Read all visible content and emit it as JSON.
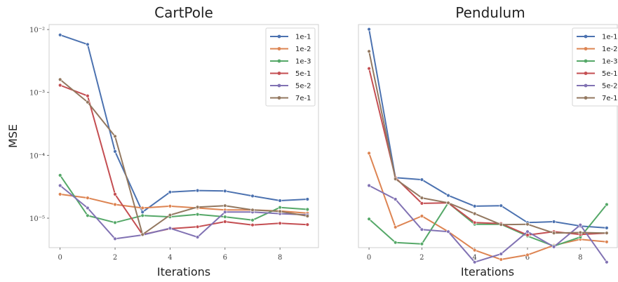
{
  "chart_data": [
    {
      "type": "line",
      "title": "CartPole",
      "xlabel": "Iterations",
      "ylabel": "MSE",
      "yscale": "log",
      "xlim": [
        -0.4,
        9.4
      ],
      "ylim": [
        3.4e-06,
        0.012
      ],
      "xticks": [
        0,
        2,
        4,
        6,
        8
      ],
      "xtick_labels": [
        "0",
        "2",
        "4",
        "6",
        "8"
      ],
      "yticks": [
        1e-05,
        0.0001,
        0.001,
        0.01
      ],
      "ytick_labels": [
        "10⁻⁵",
        "10⁻⁴",
        "10⁻³",
        "10⁻²"
      ],
      "x": [
        0,
        1,
        2,
        3,
        4,
        5,
        6,
        7,
        8,
        9
      ],
      "legend": "top-right",
      "grid": false,
      "series": [
        {
          "name": "1e-1",
          "color": "#4c72b0",
          "values": [
            0.0082,
            0.0058,
            0.000115,
            1.25e-05,
            2.6e-05,
            2.75e-05,
            2.7e-05,
            2.25e-05,
            1.9e-05,
            2e-05
          ]
        },
        {
          "name": "1e-2",
          "color": "#dd8452",
          "values": [
            2.4e-05,
            2.1e-05,
            1.65e-05,
            1.45e-05,
            1.55e-05,
            1.45e-05,
            1.35e-05,
            1.35e-05,
            1.3e-05,
            1.2e-05
          ]
        },
        {
          "name": "1e-3",
          "color": "#55a868",
          "values": [
            4.8e-05,
            1.1e-05,
            8.5e-06,
            1.1e-05,
            1.05e-05,
            1.15e-05,
            1.05e-05,
            9.3e-06,
            1.48e-05,
            1.38e-05
          ]
        },
        {
          "name": "5e-1",
          "color": "#c44e52",
          "values": [
            0.0013,
            0.00088,
            2.4e-05,
            5.5e-06,
            6.8e-06,
            7.3e-06,
            8.8e-06,
            7.8e-06,
            8.3e-06,
            7.9e-06
          ]
        },
        {
          "name": "5e-2",
          "color": "#8172b3",
          "values": [
            3.3e-05,
            1.45e-05,
            4.7e-06,
            5.4e-06,
            6.9e-06,
            5e-06,
            1.25e-05,
            1.25e-05,
            1.18e-05,
            1.13e-05
          ]
        },
        {
          "name": "7e-1",
          "color": "#937860",
          "values": [
            0.0016,
            0.0007,
            0.0002,
            5.5e-06,
            1.12e-05,
            1.5e-05,
            1.58e-05,
            1.35e-05,
            1.28e-05,
            1.08e-05
          ]
        }
      ]
    },
    {
      "type": "line",
      "title": "Pendulum",
      "xlabel": "Iterations",
      "ylabel": "",
      "yscale": "log",
      "xlim": [
        -0.4,
        9.4
      ],
      "ylim": [
        3.4e-06,
        0.012
      ],
      "xticks": [
        0,
        2,
        4,
        6,
        8
      ],
      "xtick_labels": [
        "0",
        "2",
        "4",
        "6",
        "8"
      ],
      "yticks": [],
      "ytick_labels": [],
      "x": [
        0,
        1,
        2,
        3,
        4,
        5,
        6,
        7,
        8,
        9
      ],
      "legend": "top-right",
      "grid": false,
      "series": [
        {
          "name": "1e-1",
          "color": "#4c72b0",
          "values": [
            0.0101,
            4.4e-05,
            4.1e-05,
            2.3e-05,
            1.55e-05,
            1.58e-05,
            8.5e-06,
            8.8e-06,
            7.5e-06,
            7e-06
          ]
        },
        {
          "name": "1e-2",
          "color": "#dd8452",
          "values": [
            0.000108,
            7.2e-06,
            1.08e-05,
            6.1e-06,
            3.1e-06,
            2.2e-06,
            2.6e-06,
            3.7e-06,
            4.6e-06,
            4.2e-06
          ]
        },
        {
          "name": "1e-3",
          "color": "#55a868",
          "values": [
            9.7e-06,
            4.1e-06,
            3.9e-06,
            1.75e-05,
            8e-06,
            8e-06,
            5.2e-06,
            3.6e-06,
            5e-06,
            1.65e-05
          ]
        },
        {
          "name": "5e-1",
          "color": "#c44e52",
          "values": [
            0.0024,
            4.4e-05,
            1.72e-05,
            1.75e-05,
            8.5e-06,
            8.2e-06,
            5.4e-06,
            6.1e-06,
            5.5e-06,
            5.8e-06
          ]
        },
        {
          "name": "5e-2",
          "color": "#8172b3",
          "values": [
            3.3e-05,
            2e-05,
            6.6e-06,
            6.1e-06,
            2e-06,
            2.7e-06,
            6.1e-06,
            3.5e-06,
            7.8e-06,
            2e-06
          ]
        },
        {
          "name": "7e-1",
          "color": "#937860",
          "values": [
            0.0045,
            4.2e-05,
            2.1e-05,
            1.75e-05,
            1.18e-05,
            7.9e-06,
            8e-06,
            5.8e-06,
            5.9e-06,
            5.8e-06
          ]
        }
      ]
    }
  ]
}
